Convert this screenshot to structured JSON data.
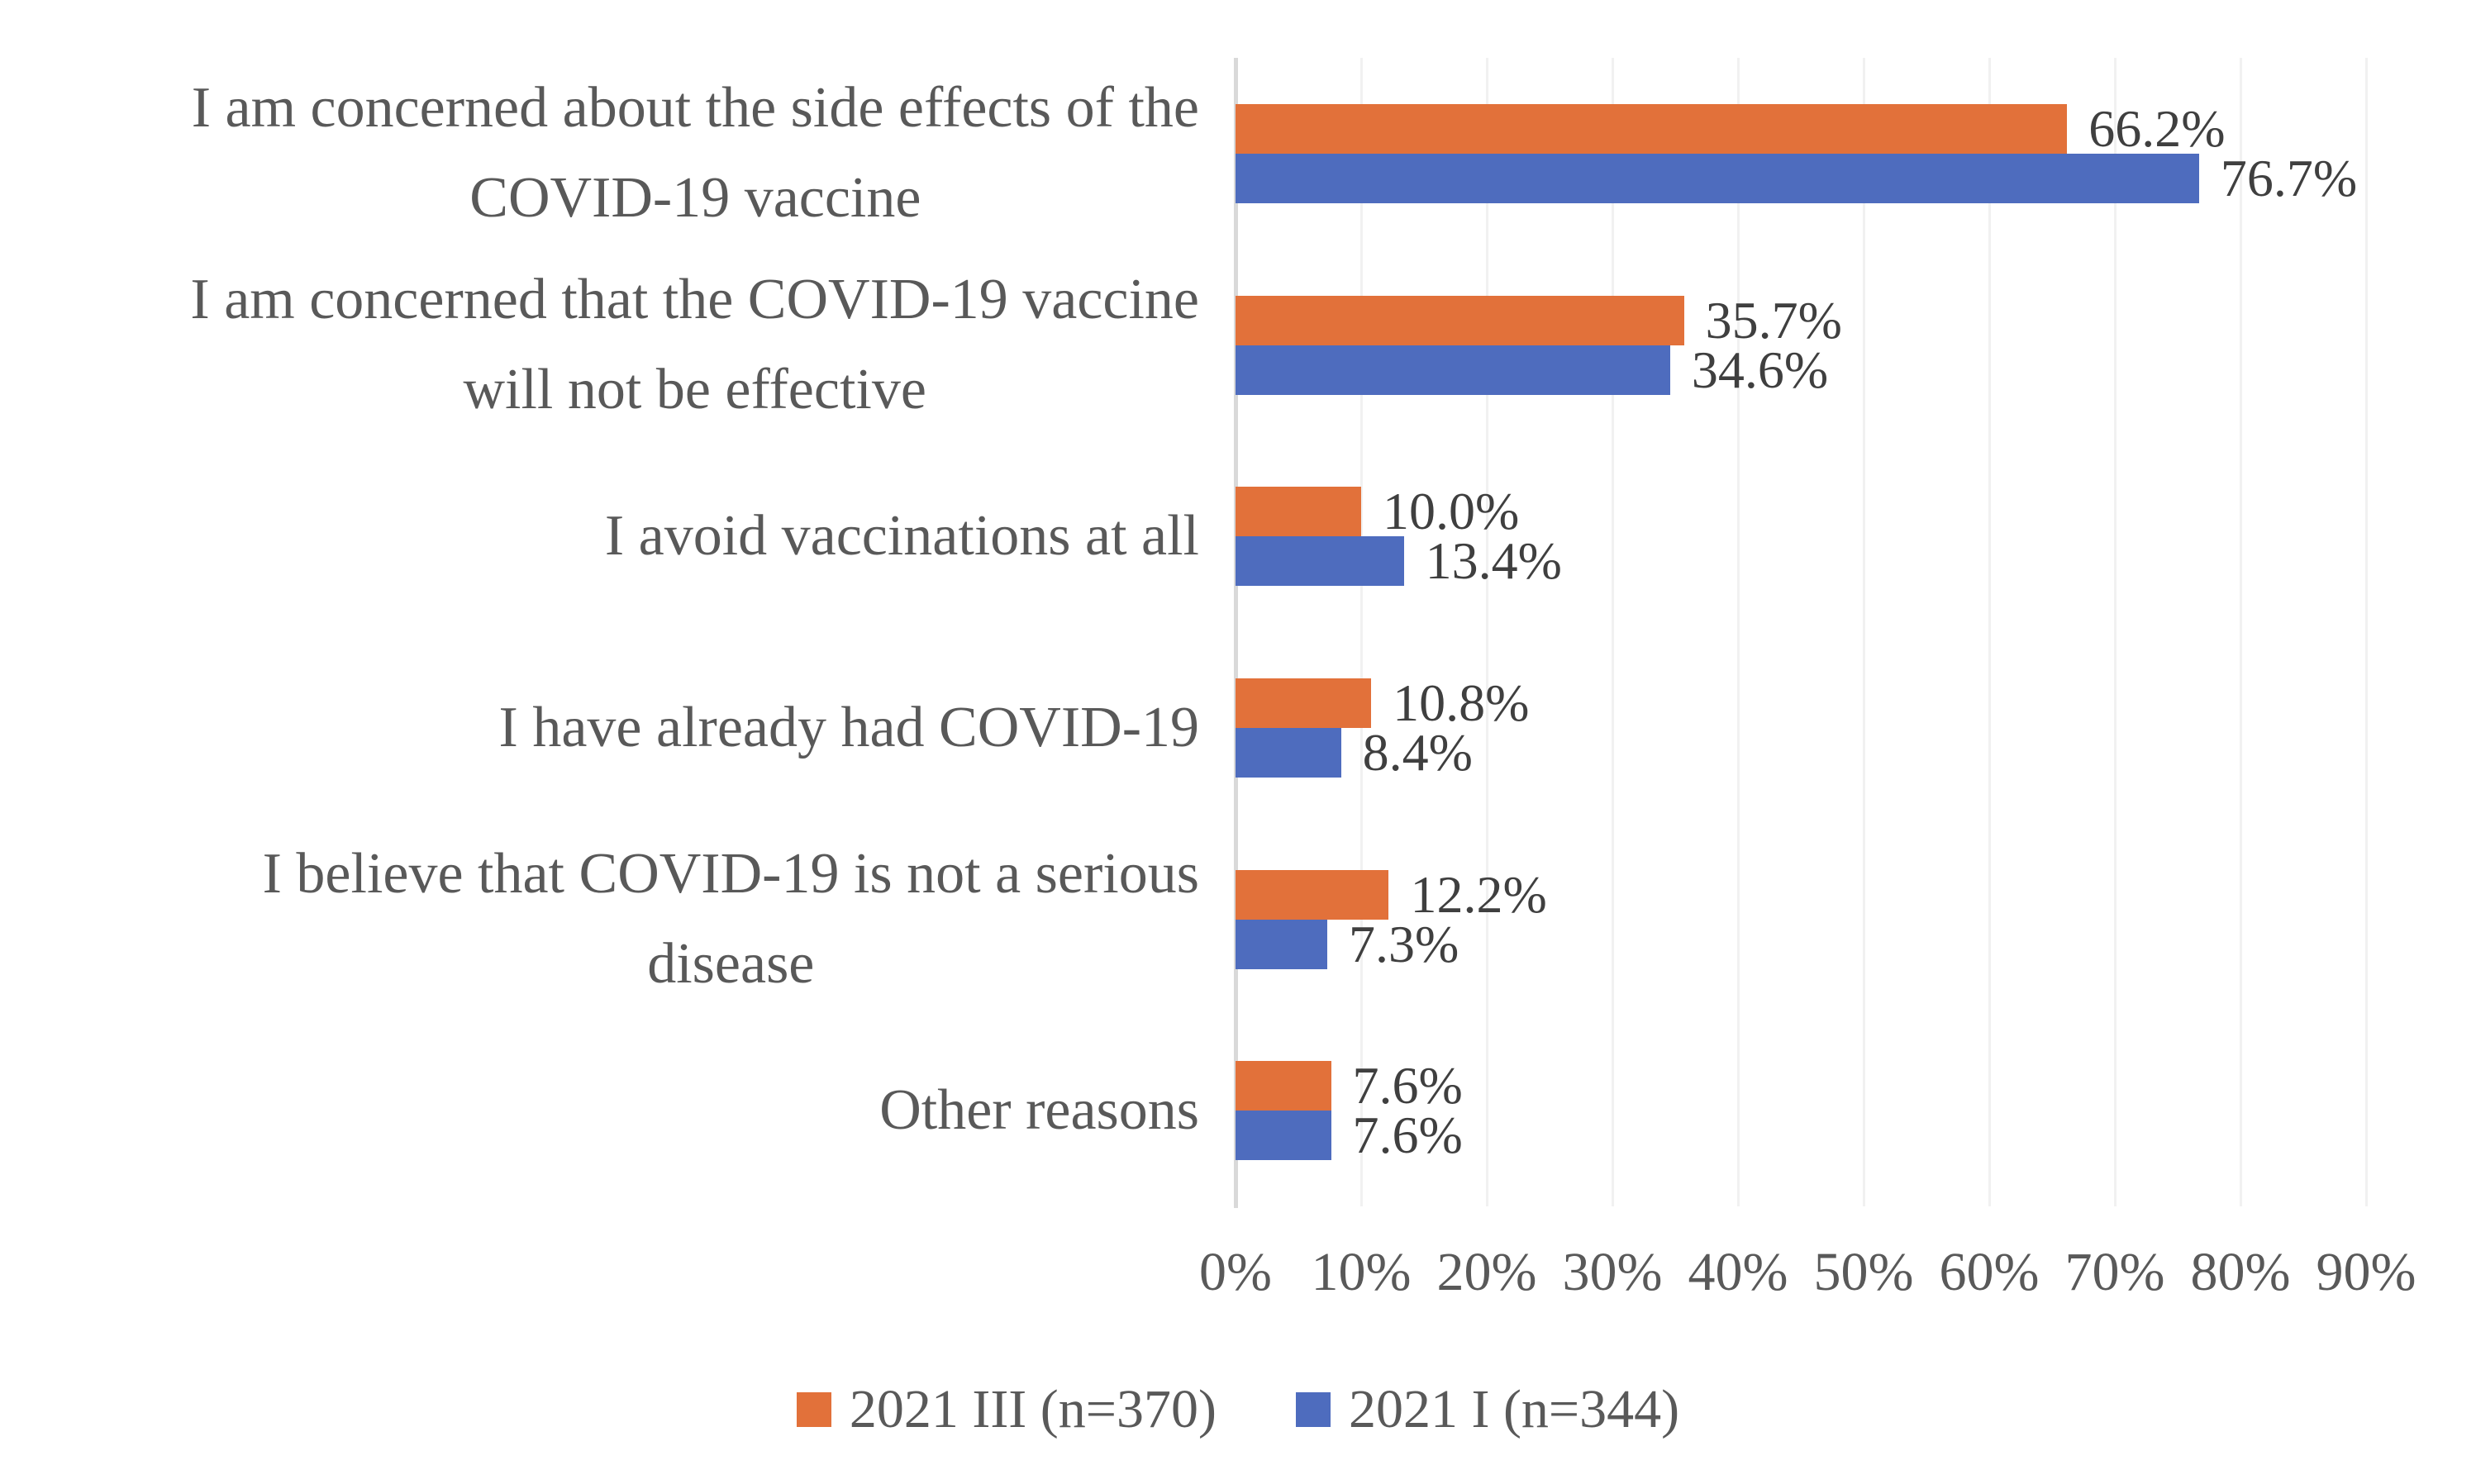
{
  "chart_data": {
    "type": "bar",
    "orientation": "horizontal",
    "title": "",
    "xlabel": "",
    "ylabel": "",
    "categories": [
      "I am concerned about the side effects of the\nCOVID-19 vaccine",
      "I am concerned that the COVID-19 vaccine\nwill not be effective",
      "I avoid vaccinations at all",
      "I have already had COVID-19",
      "I believe that COVID-19 is not a serious\ndisease",
      "Other reasons"
    ],
    "series": [
      {
        "name": "2021 III (n=370)",
        "color": "#E2713A",
        "values": [
          66.2,
          35.7,
          10.0,
          10.8,
          12.2,
          7.6
        ],
        "value_labels": [
          "66.2%",
          "35.7%",
          "10.0%",
          "10.8%",
          "12.2%",
          "7.6%"
        ]
      },
      {
        "name": "2021 I (n=344)",
        "color": "#4E6CBE",
        "values": [
          76.7,
          34.6,
          13.4,
          8.4,
          7.3,
          7.6
        ],
        "value_labels": [
          "76.7%",
          "34.6%",
          "13.4%",
          "8.4%",
          "7.3%",
          "7.6%"
        ]
      }
    ],
    "x_ticks": [
      "0%",
      "10%",
      "20%",
      "30%",
      "40%",
      "50%",
      "60%",
      "70%",
      "80%",
      "90%"
    ],
    "xlim": [
      0,
      90
    ],
    "grid": true,
    "gridline_color": "#F1F1F1",
    "axis_line_color": "#D9D9D9",
    "legend_position": "bottom"
  }
}
